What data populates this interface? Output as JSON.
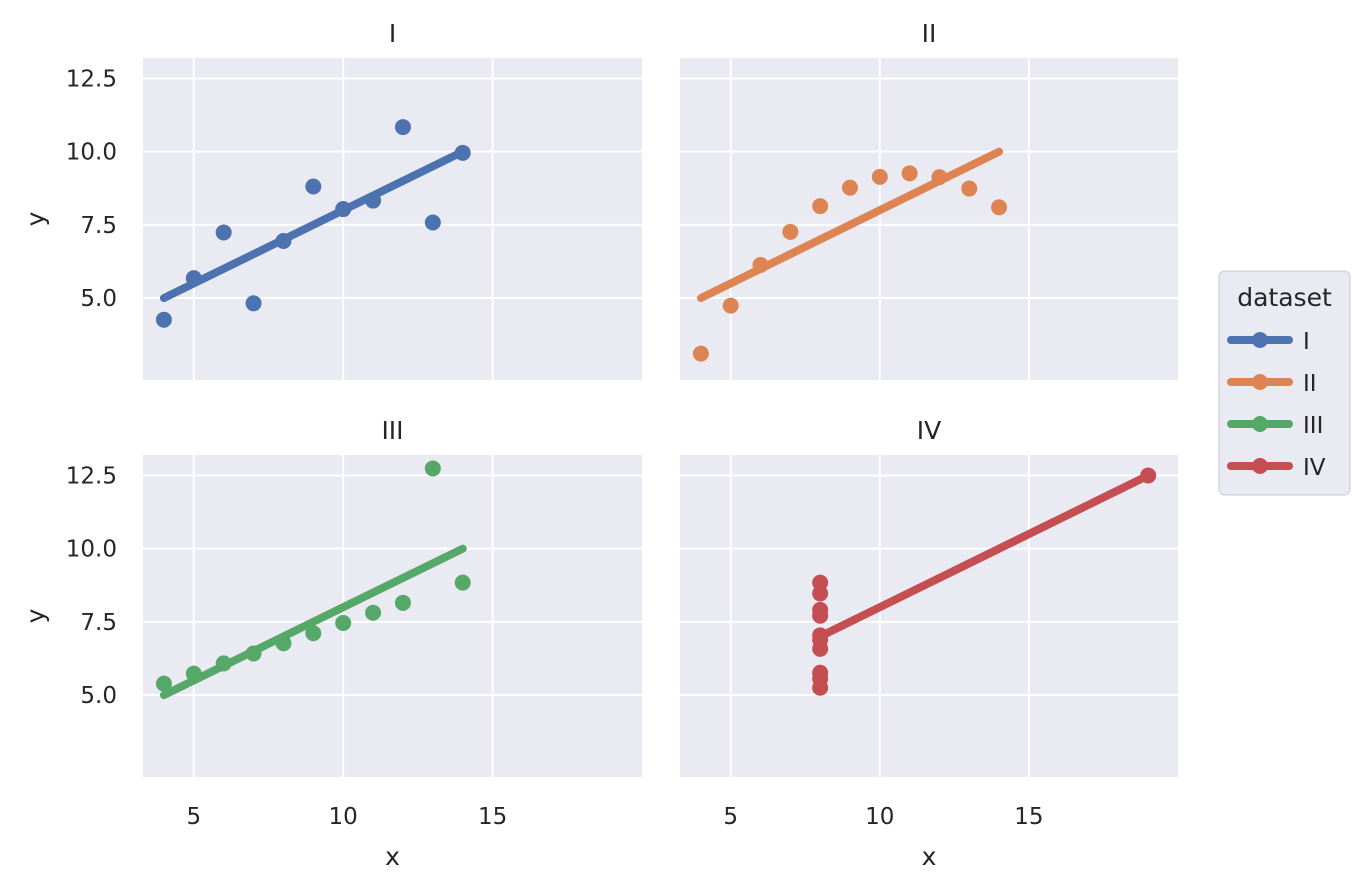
{
  "chart_data": {
    "type": "scatter",
    "layout": "2x2 facet grid with linear fit lines",
    "facet_variable": "dataset",
    "xlabel": "x",
    "ylabel": "y",
    "xlim": [
      3.3,
      20
    ],
    "ylim": [
      2.2,
      13.2
    ],
    "xticks": [
      5,
      10,
      15
    ],
    "yticks": [
      5.0,
      7.5,
      10.0,
      12.5
    ],
    "xtick_labels": [
      "5",
      "10",
      "15"
    ],
    "ytick_labels": [
      "5.0",
      "7.5",
      "10.0",
      "12.5"
    ],
    "grid": true,
    "legend": {
      "title": "dataset",
      "position": "right",
      "entries": [
        "I",
        "II",
        "III",
        "IV"
      ]
    },
    "series": [
      {
        "name": "I",
        "color": "#4c72b0",
        "x": [
          10,
          8,
          13,
          9,
          11,
          14,
          6,
          4,
          12,
          7,
          5
        ],
        "y": [
          8.04,
          6.95,
          7.58,
          8.81,
          8.33,
          9.96,
          7.24,
          4.26,
          10.84,
          4.82,
          5.68
        ],
        "fit": {
          "x": [
            4,
            14
          ],
          "y": [
            5.0,
            10.0
          ]
        }
      },
      {
        "name": "II",
        "color": "#dd8452",
        "x": [
          10,
          8,
          13,
          9,
          11,
          14,
          6,
          4,
          12,
          7,
          5
        ],
        "y": [
          9.14,
          8.14,
          8.74,
          8.77,
          9.26,
          8.1,
          6.13,
          3.1,
          9.13,
          7.26,
          4.74
        ],
        "fit": {
          "x": [
            4,
            14
          ],
          "y": [
            5.0,
            10.0
          ]
        }
      },
      {
        "name": "III",
        "color": "#55a868",
        "x": [
          10,
          8,
          13,
          9,
          11,
          14,
          6,
          4,
          12,
          7,
          5
        ],
        "y": [
          7.46,
          6.77,
          12.74,
          7.11,
          7.81,
          8.84,
          6.08,
          5.39,
          8.15,
          6.42,
          5.73
        ],
        "fit": {
          "x": [
            4,
            14
          ],
          "y": [
            5.0,
            10.0
          ]
        }
      },
      {
        "name": "IV",
        "color": "#c44e52",
        "x": [
          8,
          8,
          8,
          8,
          8,
          8,
          8,
          19,
          8,
          8,
          8
        ],
        "y": [
          6.58,
          5.76,
          7.71,
          8.84,
          8.47,
          7.04,
          5.25,
          12.5,
          5.56,
          7.91,
          6.89
        ],
        "fit": {
          "x": [
            8,
            19
          ],
          "y": [
            7.0,
            12.5
          ]
        }
      }
    ]
  }
}
